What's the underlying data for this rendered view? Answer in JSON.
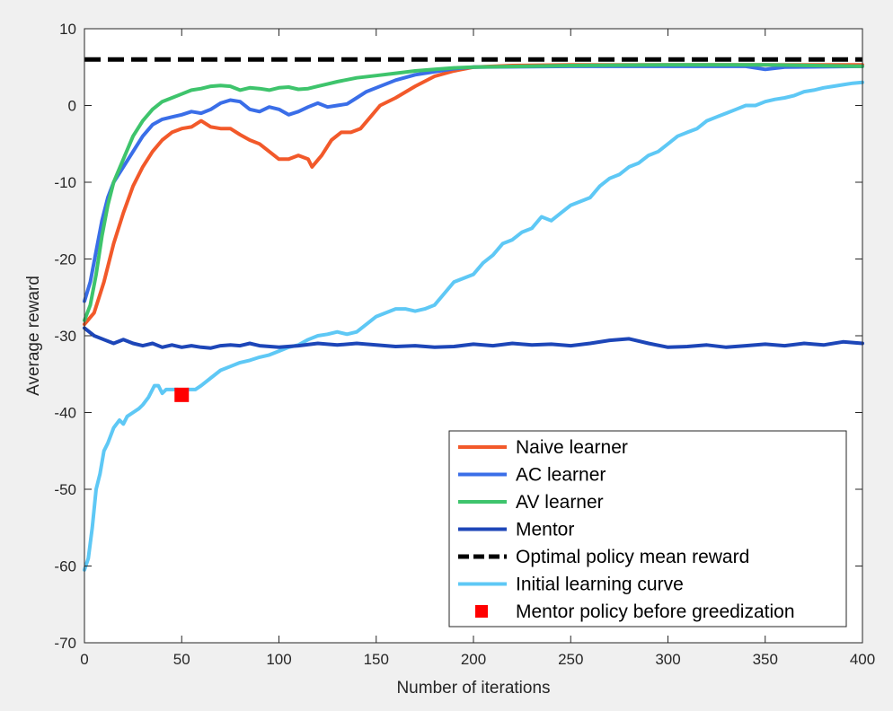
{
  "chart_data": {
    "type": "line",
    "xlabel": "Number of iterations",
    "ylabel": "Average reward",
    "xlim": [
      0,
      400
    ],
    "ylim": [
      -70,
      10
    ],
    "xticks": [
      "0",
      "50",
      "100",
      "150",
      "200",
      "250",
      "300",
      "350",
      "400"
    ],
    "yticks": [
      "10",
      "0",
      "-10",
      "-20",
      "-30",
      "-40",
      "-50",
      "-60",
      "-70"
    ],
    "grid": false,
    "legend_position": "bottom-right",
    "series": [
      {
        "name": "Naive learner",
        "color": "#f2592a",
        "style": "solid",
        "points": [
          [
            0,
            -28.5
          ],
          [
            5,
            -27
          ],
          [
            10,
            -23
          ],
          [
            15,
            -18
          ],
          [
            20,
            -14
          ],
          [
            25,
            -10.5
          ],
          [
            30,
            -8
          ],
          [
            35,
            -6
          ],
          [
            40,
            -4.5
          ],
          [
            45,
            -3.5
          ],
          [
            50,
            -3
          ],
          [
            55,
            -2.8
          ],
          [
            60,
            -2
          ],
          [
            65,
            -2.8
          ],
          [
            70,
            -3
          ],
          [
            75,
            -3
          ],
          [
            80,
            -3.8
          ],
          [
            85,
            -4.5
          ],
          [
            90,
            -5
          ],
          [
            95,
            -6
          ],
          [
            100,
            -7
          ],
          [
            105,
            -7
          ],
          [
            110,
            -6.5
          ],
          [
            115,
            -7
          ],
          [
            117,
            -8
          ],
          [
            122,
            -6.5
          ],
          [
            127,
            -4.5
          ],
          [
            132,
            -3.5
          ],
          [
            137,
            -3.5
          ],
          [
            142,
            -3
          ],
          [
            147,
            -1.5
          ],
          [
            152,
            0
          ],
          [
            160,
            1
          ],
          [
            170,
            2.5
          ],
          [
            180,
            3.8
          ],
          [
            190,
            4.5
          ],
          [
            200,
            5
          ],
          [
            220,
            5.2
          ],
          [
            250,
            5.3
          ],
          [
            300,
            5.3
          ],
          [
            350,
            5.3
          ],
          [
            400,
            5.3
          ]
        ]
      },
      {
        "name": "AC learner",
        "color": "#3a6ee8",
        "style": "solid",
        "points": [
          [
            0,
            -25.5
          ],
          [
            3,
            -23
          ],
          [
            6,
            -19
          ],
          [
            9,
            -15
          ],
          [
            12,
            -12
          ],
          [
            15,
            -10
          ],
          [
            20,
            -8
          ],
          [
            25,
            -6
          ],
          [
            30,
            -4
          ],
          [
            35,
            -2.5
          ],
          [
            40,
            -1.8
          ],
          [
            45,
            -1.5
          ],
          [
            50,
            -1.2
          ],
          [
            55,
            -0.8
          ],
          [
            60,
            -1
          ],
          [
            65,
            -0.5
          ],
          [
            70,
            0.3
          ],
          [
            75,
            0.7
          ],
          [
            80,
            0.5
          ],
          [
            85,
            -0.5
          ],
          [
            90,
            -0.8
          ],
          [
            95,
            -0.2
          ],
          [
            100,
            -0.5
          ],
          [
            105,
            -1.2
          ],
          [
            110,
            -0.8
          ],
          [
            115,
            -0.2
          ],
          [
            120,
            0.3
          ],
          [
            125,
            -0.2
          ],
          [
            130,
            0
          ],
          [
            135,
            0.2
          ],
          [
            140,
            1
          ],
          [
            145,
            1.8
          ],
          [
            150,
            2.3
          ],
          [
            160,
            3.3
          ],
          [
            170,
            4
          ],
          [
            180,
            4.4
          ],
          [
            190,
            4.8
          ],
          [
            200,
            5
          ],
          [
            250,
            5.1
          ],
          [
            300,
            5.1
          ],
          [
            340,
            5.1
          ],
          [
            350,
            4.7
          ],
          [
            360,
            5
          ],
          [
            400,
            5.1
          ]
        ]
      },
      {
        "name": "AV learner",
        "color": "#3ec46c",
        "style": "solid",
        "points": [
          [
            0,
            -28
          ],
          [
            3,
            -26
          ],
          [
            6,
            -22
          ],
          [
            9,
            -17
          ],
          [
            12,
            -13
          ],
          [
            15,
            -10
          ],
          [
            20,
            -7
          ],
          [
            25,
            -4
          ],
          [
            30,
            -2
          ],
          [
            35,
            -0.5
          ],
          [
            40,
            0.5
          ],
          [
            45,
            1
          ],
          [
            50,
            1.5
          ],
          [
            55,
            2
          ],
          [
            60,
            2.2
          ],
          [
            65,
            2.5
          ],
          [
            70,
            2.6
          ],
          [
            75,
            2.5
          ],
          [
            80,
            2
          ],
          [
            85,
            2.3
          ],
          [
            90,
            2.2
          ],
          [
            95,
            2
          ],
          [
            100,
            2.3
          ],
          [
            105,
            2.4
          ],
          [
            110,
            2.1
          ],
          [
            115,
            2.2
          ],
          [
            120,
            2.5
          ],
          [
            125,
            2.8
          ],
          [
            130,
            3.1
          ],
          [
            140,
            3.6
          ],
          [
            150,
            3.9
          ],
          [
            160,
            4.2
          ],
          [
            170,
            4.5
          ],
          [
            180,
            4.7
          ],
          [
            190,
            4.9
          ],
          [
            200,
            5
          ],
          [
            250,
            5.2
          ],
          [
            300,
            5.3
          ],
          [
            350,
            5.3
          ],
          [
            400,
            5.1
          ]
        ]
      },
      {
        "name": "Mentor",
        "color": "#1d46b8",
        "style": "solid",
        "points": [
          [
            0,
            -29
          ],
          [
            5,
            -30
          ],
          [
            10,
            -30.5
          ],
          [
            15,
            -31
          ],
          [
            20,
            -30.5
          ],
          [
            25,
            -31
          ],
          [
            30,
            -31.3
          ],
          [
            35,
            -31
          ],
          [
            40,
            -31.5
          ],
          [
            45,
            -31.2
          ],
          [
            50,
            -31.5
          ],
          [
            55,
            -31.3
          ],
          [
            60,
            -31.5
          ],
          [
            65,
            -31.6
          ],
          [
            70,
            -31.3
          ],
          [
            75,
            -31.2
          ],
          [
            80,
            -31.3
          ],
          [
            85,
            -31
          ],
          [
            90,
            -31.3
          ],
          [
            100,
            -31.5
          ],
          [
            110,
            -31.3
          ],
          [
            120,
            -31
          ],
          [
            130,
            -31.2
          ],
          [
            140,
            -31
          ],
          [
            150,
            -31.2
          ],
          [
            160,
            -31.4
          ],
          [
            170,
            -31.3
          ],
          [
            180,
            -31.5
          ],
          [
            190,
            -31.4
          ],
          [
            200,
            -31.1
          ],
          [
            210,
            -31.3
          ],
          [
            220,
            -31
          ],
          [
            230,
            -31.2
          ],
          [
            240,
            -31.1
          ],
          [
            250,
            -31.3
          ],
          [
            260,
            -31
          ],
          [
            270,
            -30.6
          ],
          [
            280,
            -30.4
          ],
          [
            290,
            -31
          ],
          [
            300,
            -31.5
          ],
          [
            310,
            -31.4
          ],
          [
            320,
            -31.2
          ],
          [
            330,
            -31.5
          ],
          [
            340,
            -31.3
          ],
          [
            350,
            -31.1
          ],
          [
            360,
            -31.3
          ],
          [
            370,
            -31
          ],
          [
            380,
            -31.2
          ],
          [
            390,
            -30.8
          ],
          [
            400,
            -31
          ]
        ]
      },
      {
        "name": "Optimal policy mean reward",
        "color": "#000000",
        "style": "dashed",
        "points": [
          [
            0,
            6
          ],
          [
            400,
            6
          ]
        ]
      },
      {
        "name": "Initial learning curve",
        "color": "#5ec8f5",
        "style": "solid",
        "points": [
          [
            0,
            -60.5
          ],
          [
            2,
            -59
          ],
          [
            4,
            -55
          ],
          [
            6,
            -50
          ],
          [
            8,
            -48
          ],
          [
            10,
            -45
          ],
          [
            12,
            -44
          ],
          [
            15,
            -42
          ],
          [
            18,
            -41
          ],
          [
            20,
            -41.5
          ],
          [
            22,
            -40.5
          ],
          [
            25,
            -40
          ],
          [
            28,
            -39.5
          ],
          [
            30,
            -39
          ],
          [
            33,
            -38
          ],
          [
            36,
            -36.5
          ],
          [
            38,
            -36.5
          ],
          [
            40,
            -37.5
          ],
          [
            42,
            -37
          ],
          [
            45,
            -37
          ],
          [
            48,
            -37
          ],
          [
            50,
            -37.5
          ],
          [
            53,
            -37
          ],
          [
            57,
            -37
          ],
          [
            60,
            -36.5
          ],
          [
            65,
            -35.5
          ],
          [
            70,
            -34.5
          ],
          [
            75,
            -34
          ],
          [
            80,
            -33.5
          ],
          [
            85,
            -33.2
          ],
          [
            90,
            -32.8
          ],
          [
            95,
            -32.5
          ],
          [
            100,
            -32
          ],
          [
            105,
            -31.5
          ],
          [
            110,
            -31.2
          ],
          [
            115,
            -30.5
          ],
          [
            120,
            -30
          ],
          [
            125,
            -29.8
          ],
          [
            130,
            -29.5
          ],
          [
            135,
            -29.8
          ],
          [
            140,
            -29.5
          ],
          [
            145,
            -28.5
          ],
          [
            150,
            -27.5
          ],
          [
            155,
            -27
          ],
          [
            160,
            -26.5
          ],
          [
            165,
            -26.5
          ],
          [
            170,
            -26.8
          ],
          [
            175,
            -26.5
          ],
          [
            180,
            -26
          ],
          [
            185,
            -24.5
          ],
          [
            190,
            -23
          ],
          [
            195,
            -22.5
          ],
          [
            200,
            -22
          ],
          [
            205,
            -20.5
          ],
          [
            210,
            -19.5
          ],
          [
            215,
            -18
          ],
          [
            220,
            -17.5
          ],
          [
            225,
            -16.5
          ],
          [
            230,
            -16
          ],
          [
            235,
            -14.5
          ],
          [
            240,
            -15
          ],
          [
            245,
            -14
          ],
          [
            250,
            -13
          ],
          [
            255,
            -12.5
          ],
          [
            260,
            -12
          ],
          [
            265,
            -10.5
          ],
          [
            270,
            -9.5
          ],
          [
            275,
            -9
          ],
          [
            280,
            -8
          ],
          [
            285,
            -7.5
          ],
          [
            290,
            -6.5
          ],
          [
            295,
            -6
          ],
          [
            300,
            -5
          ],
          [
            305,
            -4
          ],
          [
            310,
            -3.5
          ],
          [
            315,
            -3
          ],
          [
            320,
            -2
          ],
          [
            325,
            -1.5
          ],
          [
            330,
            -1
          ],
          [
            335,
            -0.5
          ],
          [
            340,
            0
          ],
          [
            345,
            0
          ],
          [
            350,
            0.5
          ],
          [
            355,
            0.8
          ],
          [
            360,
            1
          ],
          [
            365,
            1.3
          ],
          [
            370,
            1.8
          ],
          [
            375,
            2
          ],
          [
            380,
            2.3
          ],
          [
            385,
            2.5
          ],
          [
            390,
            2.7
          ],
          [
            395,
            2.9
          ],
          [
            400,
            3
          ]
        ]
      },
      {
        "name": "Mentor policy before greedization",
        "color": "#ff0000",
        "style": "marker",
        "points": [
          [
            50,
            -37.7
          ]
        ]
      }
    ]
  }
}
